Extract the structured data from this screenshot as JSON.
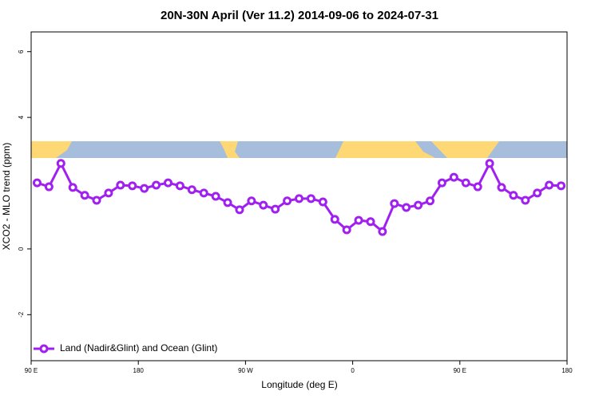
{
  "chart_data": {
    "type": "line",
    "title": "20N-30N April (Ver 11.2)   2014-09-06 to 2024-07-31",
    "xlabel": "Longitude (deg E)",
    "ylabel": "XCO2 - MLO trend (ppm)",
    "x": [
      95,
      105,
      115,
      125,
      135,
      145,
      155,
      165,
      175,
      185,
      195,
      205,
      215,
      225,
      235,
      245,
      255,
      265,
      275,
      285,
      295,
      305,
      315,
      325,
      335,
      345,
      355,
      365,
      375,
      385,
      395,
      405,
      415,
      425,
      435,
      445,
      455,
      465,
      475,
      485,
      495,
      505,
      515,
      525,
      535
    ],
    "series": [
      {
        "name": "Land (Nadir&Glint) and Ocean (Glint)",
        "color": "#a020f0",
        "values": [
          2.01,
          1.89,
          2.6,
          1.87,
          1.63,
          1.48,
          1.7,
          1.94,
          1.92,
          1.84,
          1.94,
          2.01,
          1.92,
          1.8,
          1.7,
          1.6,
          1.41,
          1.19,
          1.46,
          1.33,
          1.21,
          1.46,
          1.53,
          1.53,
          1.43,
          0.9,
          0.58,
          0.87,
          0.83,
          0.53,
          1.38,
          1.26,
          1.33,
          1.46,
          2.01,
          2.18,
          2.01,
          1.89,
          2.6,
          1.87,
          1.63,
          1.48,
          1.7,
          1.94,
          1.92
        ]
      }
    ],
    "xlim": [
      90,
      540
    ],
    "xticks": [
      {
        "value": 90,
        "label": "90 E"
      },
      180,
      {
        "value": 270,
        "label": "90 W"
      },
      {
        "value": 360,
        "label": "0"
      },
      {
        "value": 450,
        "label": "90 E"
      },
      {
        "value": 540,
        "label": "180"
      }
    ],
    "ylim": [
      -3.4,
      6.6
    ],
    "yticks": [
      -2,
      0,
      4,
      6
    ],
    "legend": "bottom-left"
  }
}
